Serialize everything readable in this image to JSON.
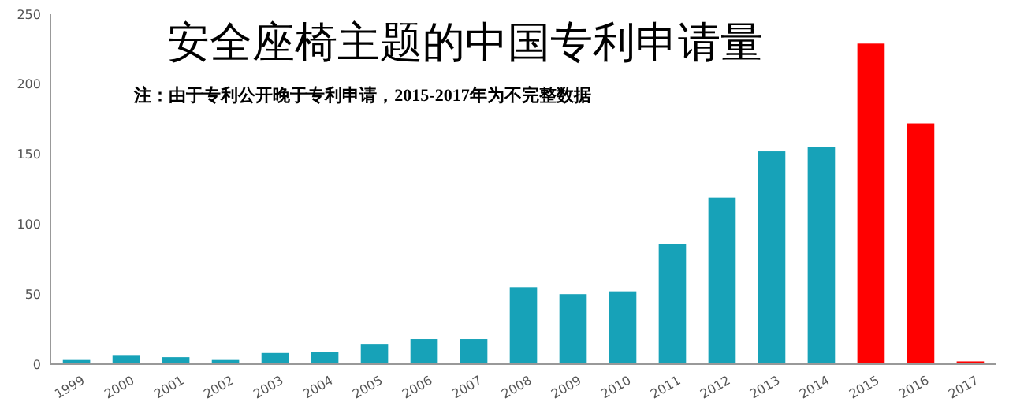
{
  "chart_data": {
    "type": "bar",
    "title": "安全座椅主题的中国专利申请量",
    "subtitle": "注：由于专利公开晚于专利申请，2015-2017年为不完整数据",
    "categories": [
      "1999",
      "2000",
      "2001",
      "2002",
      "2003",
      "2004",
      "2005",
      "2006",
      "2007",
      "2008",
      "2009",
      "2010",
      "2011",
      "2012",
      "2013",
      "2014",
      "2015",
      "2016",
      "2017"
    ],
    "values": [
      3,
      6,
      5,
      3,
      8,
      9,
      14,
      18,
      18,
      55,
      50,
      52,
      86,
      119,
      152,
      155,
      229,
      172,
      2
    ],
    "colors": [
      "#17a2b8",
      "#17a2b8",
      "#17a2b8",
      "#17a2b8",
      "#17a2b8",
      "#17a2b8",
      "#17a2b8",
      "#17a2b8",
      "#17a2b8",
      "#17a2b8",
      "#17a2b8",
      "#17a2b8",
      "#17a2b8",
      "#17a2b8",
      "#17a2b8",
      "#17a2b8",
      "#ff0000",
      "#ff0000",
      "#ff0000"
    ],
    "ylim": [
      0,
      250
    ],
    "yticks": [
      0,
      50,
      100,
      150,
      200,
      250
    ]
  }
}
